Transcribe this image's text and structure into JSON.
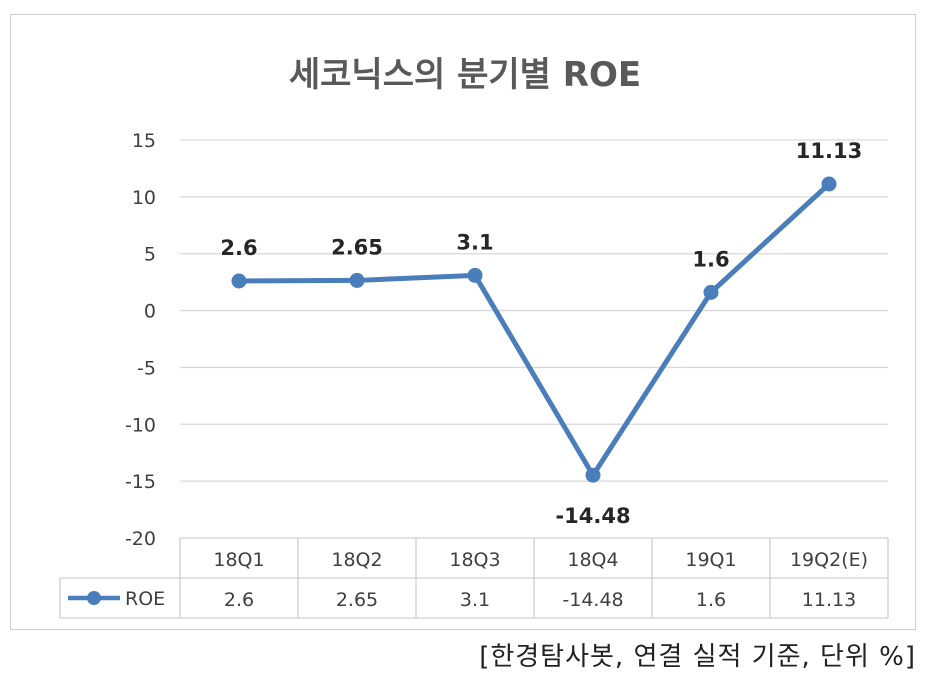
{
  "chart_data": {
    "type": "line",
    "title": "세코닉스의 분기별 ROE",
    "categories": [
      "18Q1",
      "18Q2",
      "18Q3",
      "18Q4",
      "19Q1",
      "19Q2(E)"
    ],
    "series": [
      {
        "name": "ROE",
        "values": [
          2.6,
          2.65,
          3.1,
          -14.48,
          1.6,
          11.13
        ],
        "labels": [
          "2.6",
          "2.65",
          "3.1",
          "-14.48",
          "1.6",
          "11.13"
        ]
      }
    ],
    "yticks": [
      "15",
      "10",
      "5",
      "0",
      "-5",
      "-10",
      "-15",
      "-20"
    ],
    "ylim": [
      -20,
      15
    ],
    "grid": true,
    "legend": "data-table",
    "data_table": true,
    "color": "#4a7ebb"
  },
  "source_note": "[한경탐사봇, 연결 실적 기준, 단위 %]"
}
